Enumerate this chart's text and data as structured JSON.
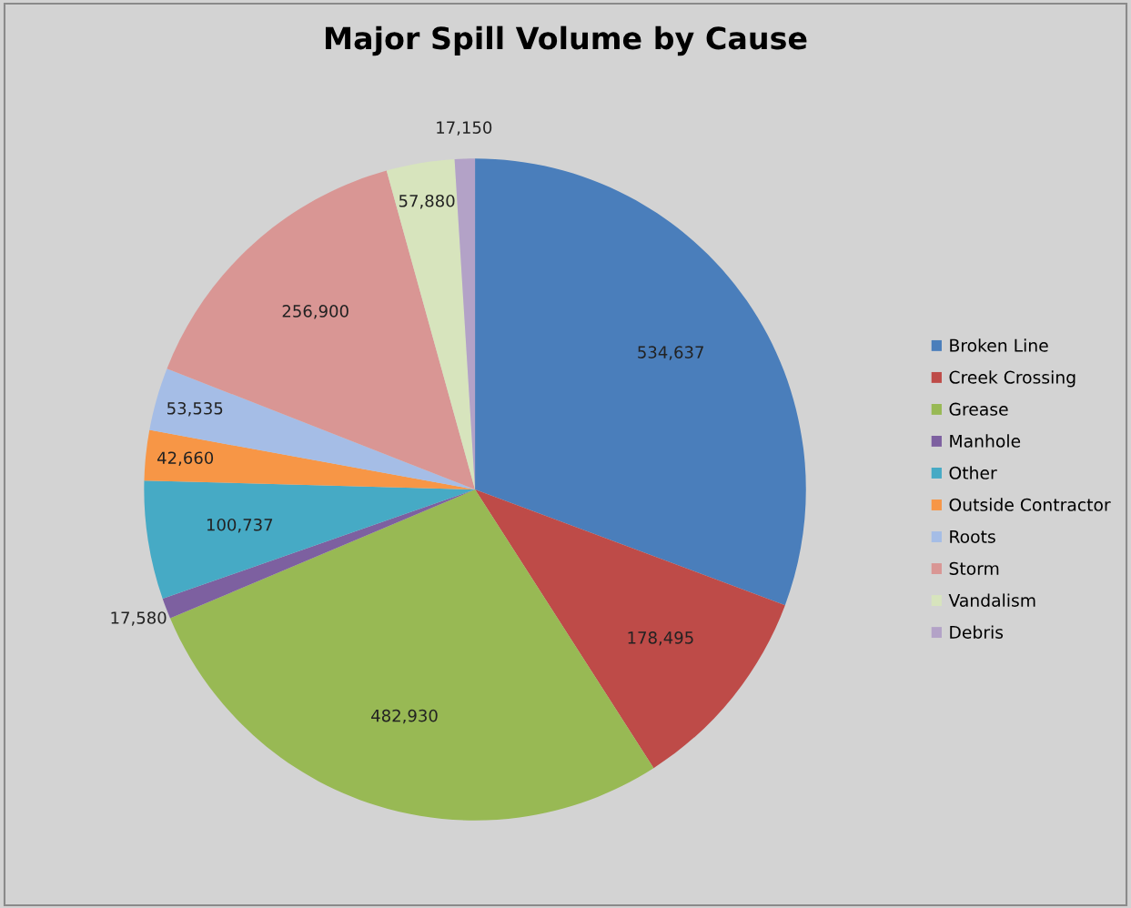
{
  "chart_data": {
    "type": "pie",
    "title": "Major Spill Volume by Cause",
    "categories": [
      "Broken Line",
      "Creek Crossing",
      "Grease",
      "Manhole",
      "Other",
      "Outside Contractor",
      "Roots",
      "Storm",
      "Vandalism",
      "Debris"
    ],
    "values": [
      534637,
      178495,
      482930,
      17580,
      100737,
      42660,
      53535,
      256900,
      57880,
      17150
    ],
    "value_labels": [
      "534,637",
      "178,495",
      "482,930",
      "17,580",
      "100,737",
      "42,660",
      "53,535",
      "256,900",
      "57,880",
      "17,150"
    ],
    "colors": [
      "#4a7ebb",
      "#be4b48",
      "#98b954",
      "#7d60a0",
      "#46aac5",
      "#f79646",
      "#a5bde6",
      "#d99694",
      "#d7e4bd",
      "#b3a2c7"
    ],
    "legend": "right"
  }
}
